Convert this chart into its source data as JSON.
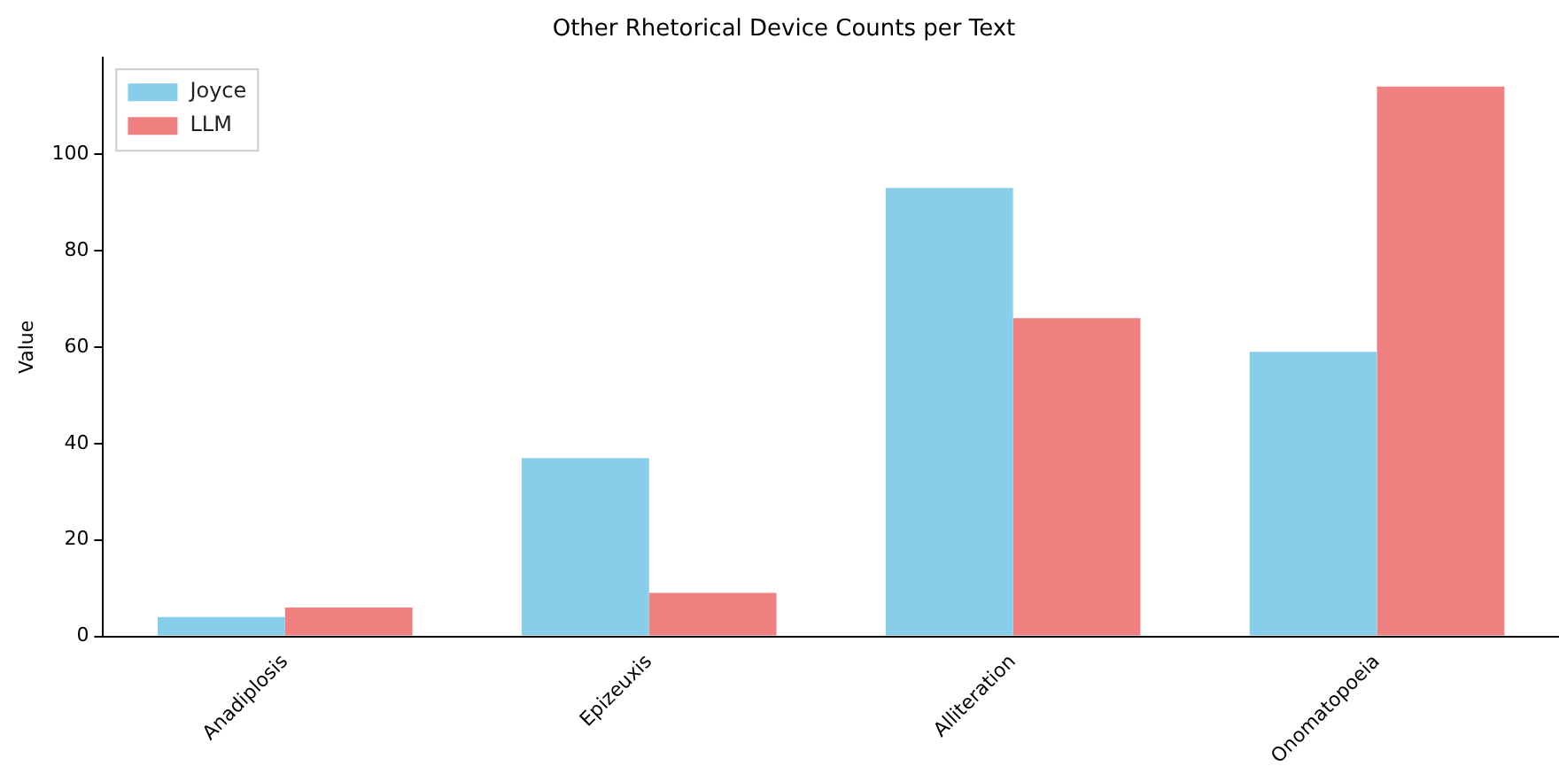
{
  "chart_data": {
    "type": "bar",
    "title": "Other Rhetorical Device Counts per Text",
    "ylabel": "Value",
    "categories": [
      "Anadiplosis",
      "Epizeuxis",
      "Alliteration",
      "Onomatopoeia"
    ],
    "series": [
      {
        "name": "Joyce",
        "color": "#87ceeb",
        "values": [
          4,
          37,
          93,
          59
        ]
      },
      {
        "name": "LLM",
        "color": "#f08080",
        "values": [
          6,
          9,
          66,
          114
        ]
      }
    ],
    "ylim": [
      0,
      120
    ],
    "yticks": [
      0,
      20,
      40,
      60,
      80,
      100
    ],
    "grid": false,
    "legend": "top left"
  }
}
